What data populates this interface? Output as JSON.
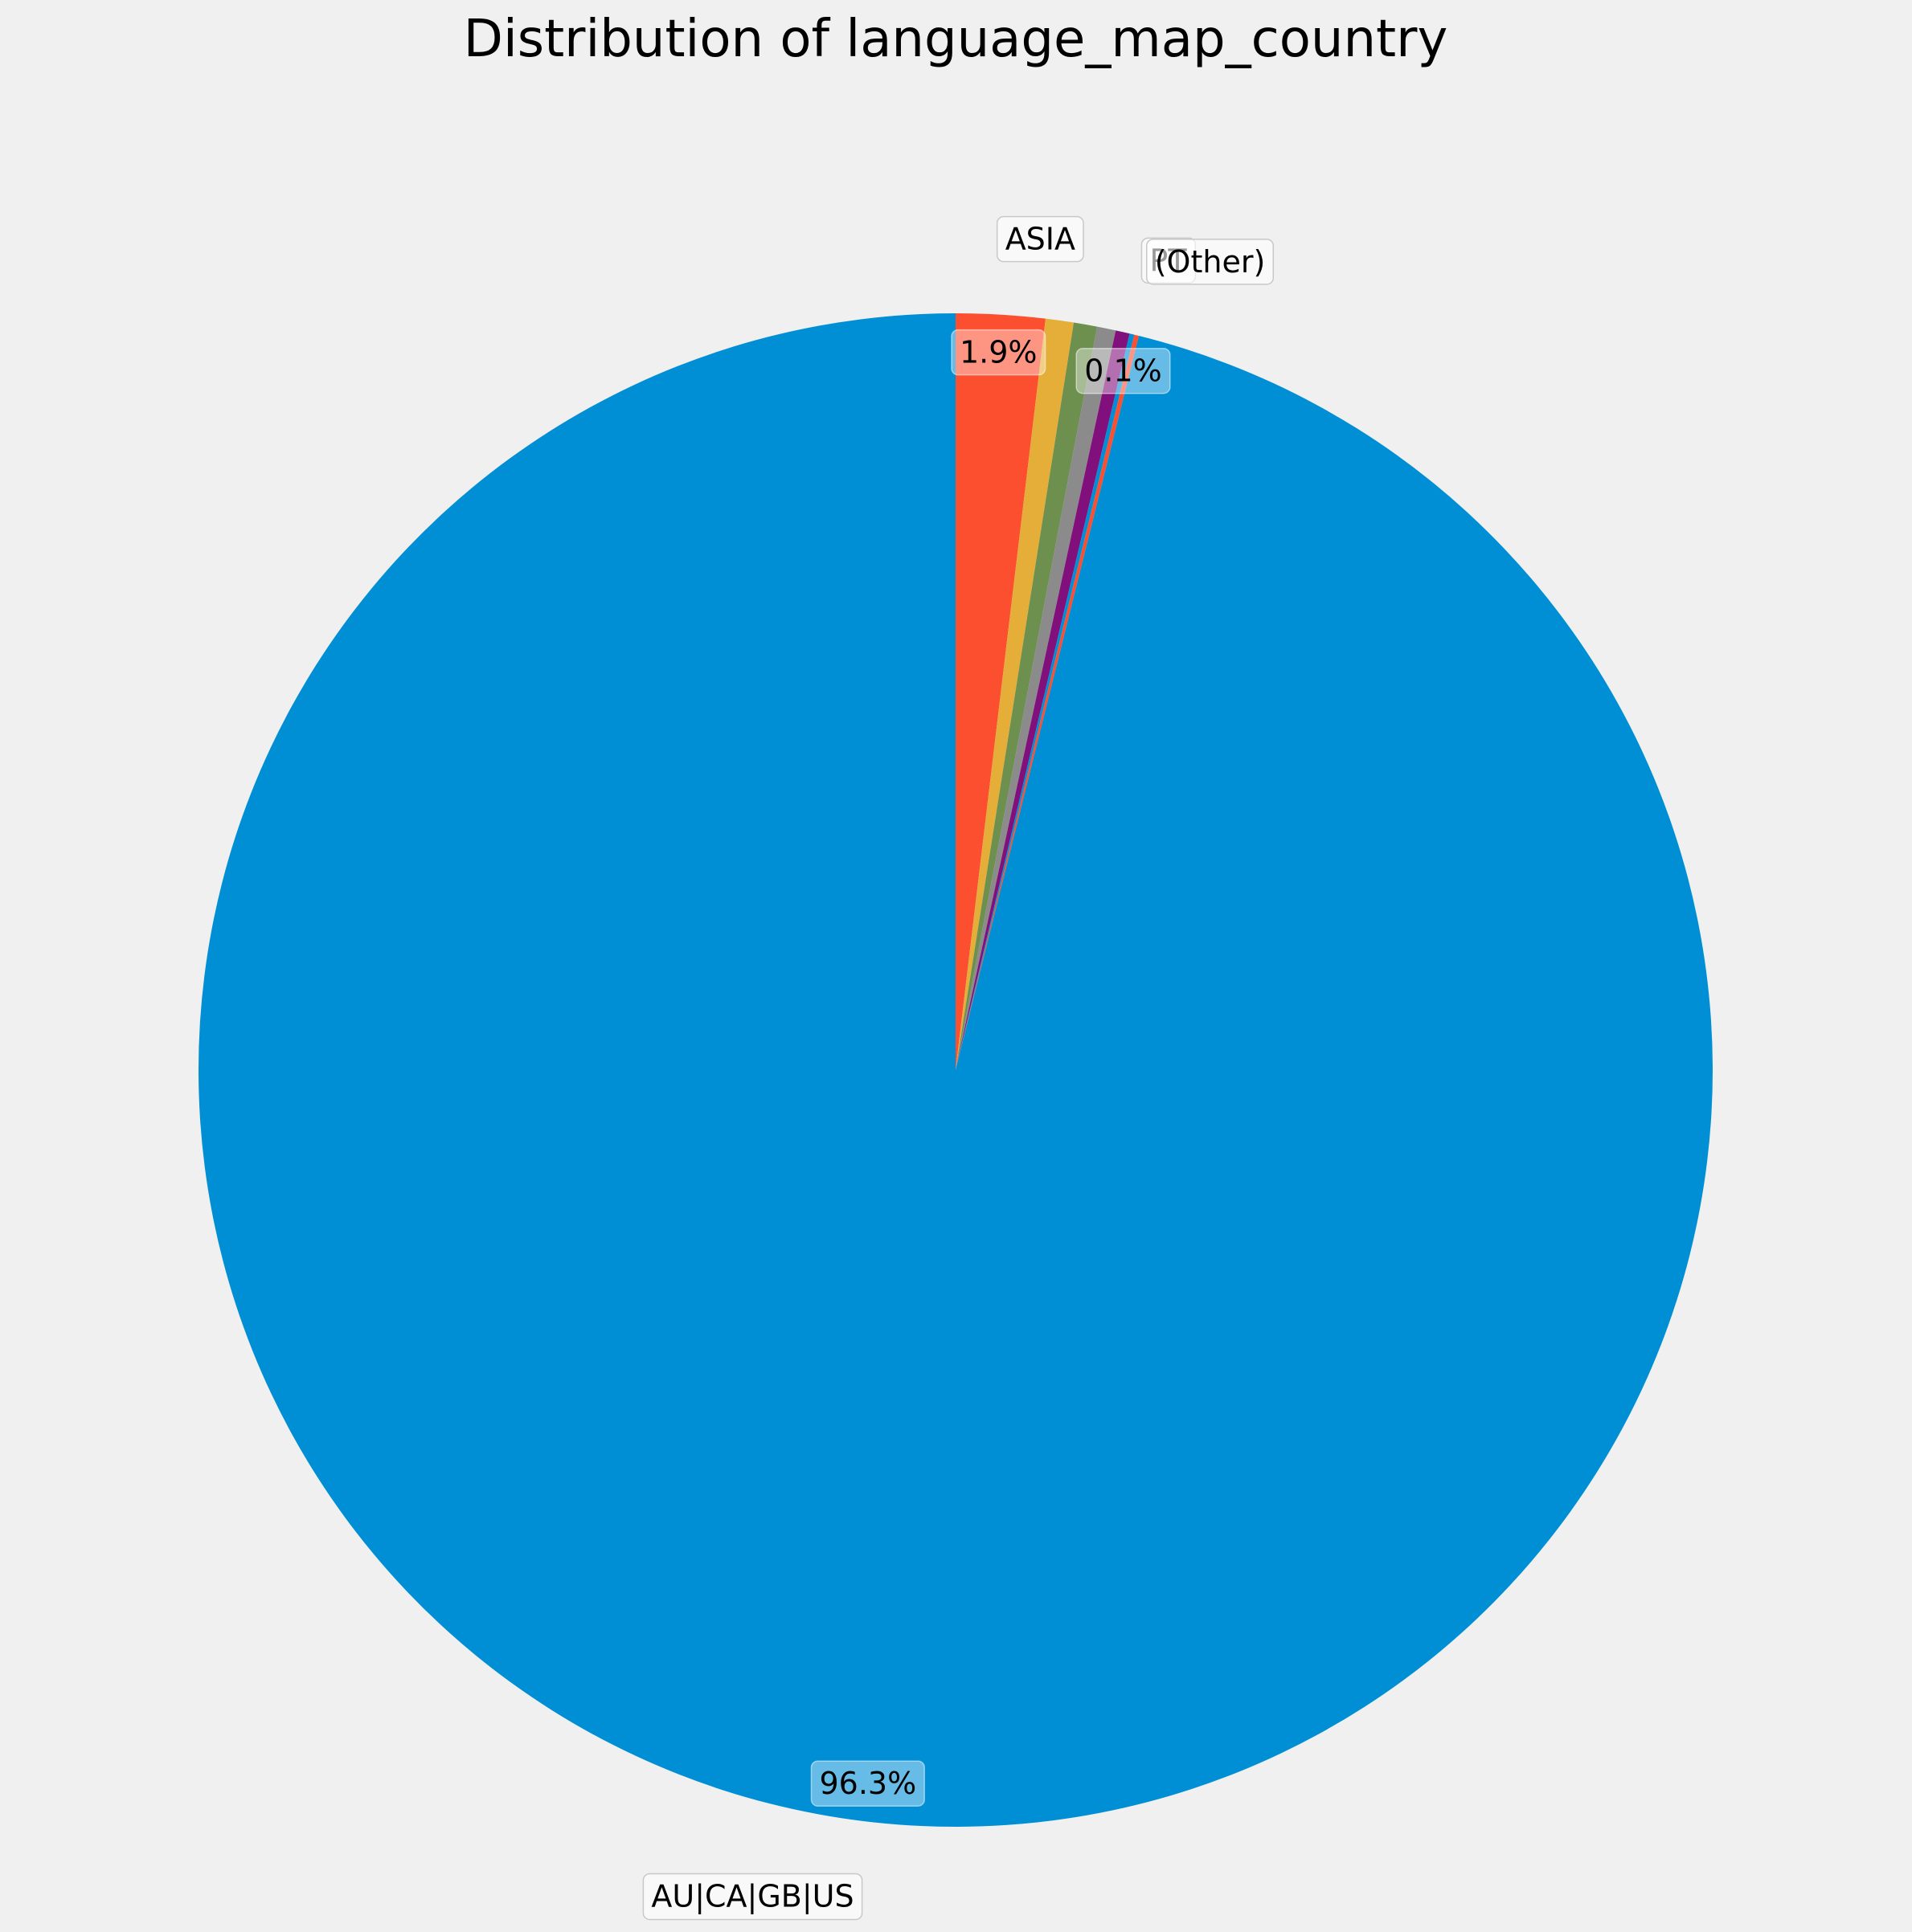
{
  "chart_data": {
    "type": "pie",
    "title": "Distribution of language_map_country",
    "start": "top, clockwise",
    "categories": [
      "ASIA",
      "",
      "",
      "",
      "",
      "PT",
      "(Other)",
      "AU|CA|GB|US"
    ],
    "values": [
      1.9,
      0.6,
      0.5,
      0.4,
      0.3,
      0.1,
      0.1,
      96.3
    ],
    "percent_labels": [
      "1.9%",
      "",
      "",
      "",
      "",
      "0.1%",
      "",
      "96.3%"
    ],
    "colors": [
      "#fc4f30",
      "#e5ae38",
      "#6d904f",
      "#8b8b8b",
      "#810f7c",
      "#008fd5",
      "#fc4f30",
      "#008fd5"
    ],
    "legend": "none"
  }
}
